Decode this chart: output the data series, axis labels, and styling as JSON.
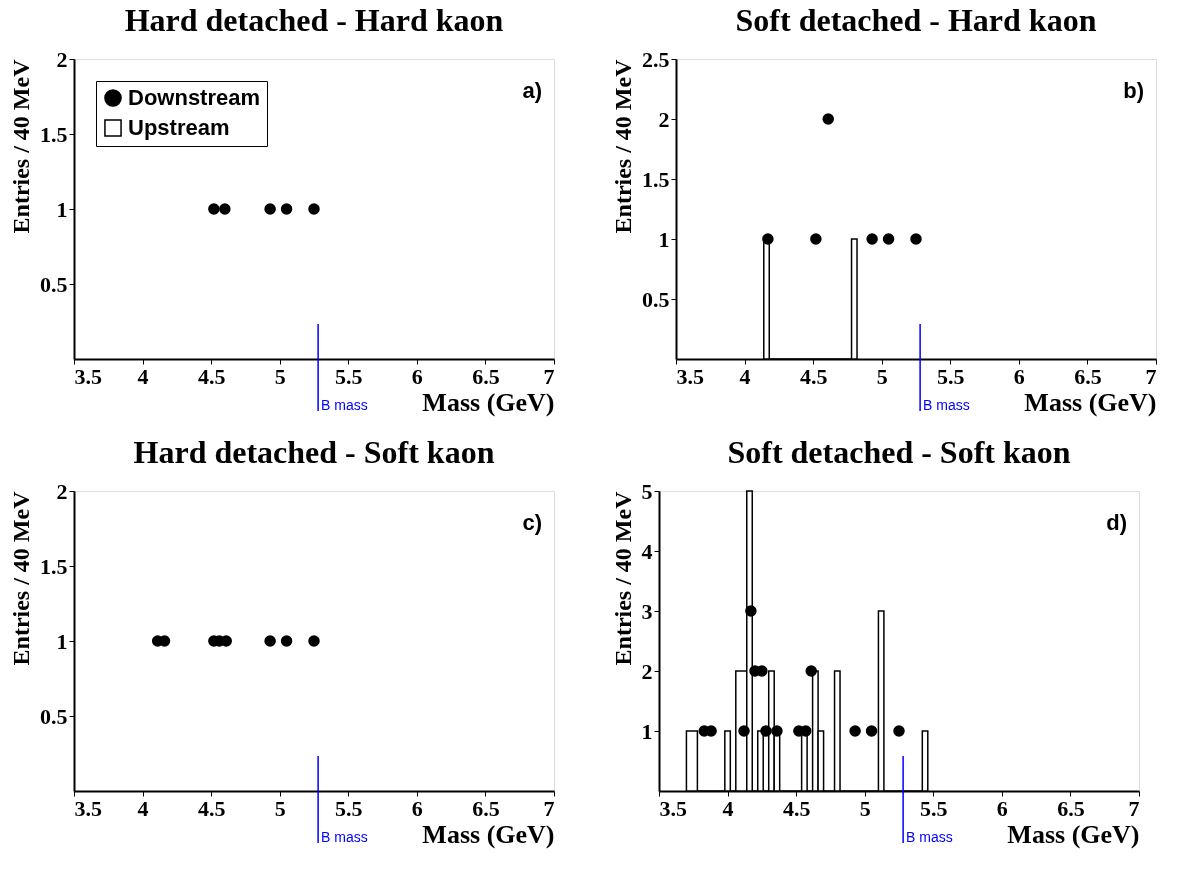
{
  "chart_data": [
    {
      "type": "histogram",
      "title": "Hard detached - Hard kaon",
      "xlabel": "Mass (GeV)",
      "ylabel": "Entries / 40 MeV",
      "xlim": [
        3.5,
        7
      ],
      "xticks": [
        3.5,
        4,
        4.5,
        5,
        5.5,
        6,
        6.5,
        7
      ],
      "ylim": [
        0,
        2
      ],
      "yticks": [
        0.5,
        1,
        1.5,
        2
      ],
      "grid": false,
      "legend": "top left",
      "marker": "circle",
      "annotations": [
        "a)"
      ],
      "ref_lines": [
        {
          "axis": "x",
          "value": 5.28,
          "label": "B mass",
          "color": "#0000ff"
        }
      ],
      "series": [
        {
          "name": "Downstream",
          "type": "scatter",
          "color": "#000000",
          "x": [
            4.52,
            4.6,
            4.93,
            5.05,
            5.25
          ],
          "values": [
            1,
            1,
            1,
            1,
            1
          ]
        },
        {
          "name": "Upstream",
          "color": "#000000"
        }
      ]
    },
    {
      "type": "histogram",
      "title": "Soft detached - Hard kaon",
      "xlabel": "Mass (GeV)",
      "ylabel": "Entries / 40 MeV",
      "xlim": [
        3.5,
        7
      ],
      "xticks": [
        3.5,
        4,
        4.5,
        5,
        5.5,
        6,
        6.5,
        7
      ],
      "ylim": [
        0,
        2.5
      ],
      "yticks": [
        0.5,
        1,
        1.5,
        2,
        2.5
      ],
      "grid": false,
      "marker": "circle",
      "annotations": [
        "b)"
      ],
      "ref_lines": [
        {
          "axis": "x",
          "value": 5.28,
          "label": "B mass",
          "color": "#0000ff"
        }
      ],
      "series": [
        {
          "type": "scatter",
          "color": "#000000",
          "x": [
            4.17,
            4.52,
            4.61,
            4.93,
            5.05,
            5.25
          ],
          "values": [
            1,
            1,
            2,
            1,
            1,
            1
          ]
        },
        {
          "color": "#000000",
          "bins": [
            4.14,
            4.18,
            4.78,
            4.82
          ],
          "values": [
            1,
            0,
            1
          ]
        }
      ]
    },
    {
      "type": "scatter",
      "title": "Hard detached - Soft kaon",
      "xlabel": "Mass (GeV)",
      "ylabel": "Entries / 40 MeV",
      "xlim": [
        3.5,
        7
      ],
      "xticks": [
        3.5,
        4,
        4.5,
        5,
        5.5,
        6,
        6.5,
        7
      ],
      "ylim": [
        0,
        2
      ],
      "yticks": [
        0.5,
        1,
        1.5,
        2
      ],
      "grid": false,
      "marker": "circle",
      "annotations": [
        "c)"
      ],
      "ref_lines": [
        {
          "axis": "x",
          "value": 5.28,
          "label": "B mass",
          "color": "#0000ff"
        }
      ],
      "series": [
        {
          "color": "#000000",
          "x": [
            4.11,
            4.16,
            4.52,
            4.56,
            4.61,
            4.93,
            5.05,
            5.25
          ],
          "values": [
            1,
            1,
            1,
            1,
            1,
            1,
            1,
            1
          ]
        }
      ]
    },
    {
      "type": "histogram",
      "title": "Soft detached - Soft kaon",
      "xlabel": "Mass (GeV)",
      "ylabel": "Entries / 40 MeV",
      "xlim": [
        3.5,
        7
      ],
      "xticks": [
        3.5,
        4,
        4.5,
        5,
        5.5,
        6,
        6.5,
        7
      ],
      "ylim": [
        0,
        5
      ],
      "yticks": [
        1,
        2,
        3,
        4,
        5
      ],
      "grid": false,
      "marker": "circle",
      "annotations": [
        "d)"
      ],
      "ref_lines": [
        {
          "axis": "x",
          "value": 5.28,
          "label": "B mass",
          "color": "#0000ff"
        }
      ],
      "series": [
        {
          "type": "scatter",
          "color": "#000000",
          "x": [
            3.83,
            3.88,
            4.12,
            4.17,
            4.2,
            4.25,
            4.28,
            4.36,
            4.52,
            4.57,
            4.61,
            4.93,
            5.05,
            5.25
          ],
          "values": [
            1,
            1,
            1,
            3,
            2,
            2,
            1,
            1,
            1,
            1,
            2,
            1,
            1,
            1
          ]
        },
        {
          "color": "#000000",
          "bins": [
            3.7,
            3.78,
            3.98,
            4.02,
            4.06,
            4.14,
            4.18,
            4.22,
            4.26,
            4.3,
            4.34,
            4.38,
            4.54,
            4.58,
            4.62,
            4.66,
            4.7,
            4.78,
            4.82,
            5.1,
            5.14,
            5.42,
            5.46
          ],
          "values": [
            1,
            0,
            1,
            0,
            2,
            5,
            0,
            1,
            0,
            2,
            1,
            0,
            1,
            0,
            2,
            1,
            0,
            2,
            0,
            3,
            0,
            1
          ]
        }
      ]
    }
  ]
}
